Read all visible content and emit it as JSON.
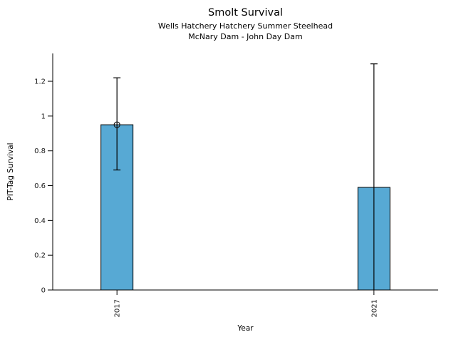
{
  "chart_data": {
    "type": "bar",
    "title": "Smolt Survival",
    "subtitle_line1": "Wells Hatchery Hatchery Summer Steelhead",
    "subtitle_line2": "McNary Dam - John Day Dam",
    "xlabel": "Year",
    "ylabel": "PIT-Tag Survival",
    "categories": [
      "2017",
      "2021"
    ],
    "values": [
      0.95,
      0.59
    ],
    "error_low": [
      0.69,
      0
    ],
    "error_high": [
      1.22,
      1.3
    ],
    "point_markers": [
      true,
      false
    ],
    "yticks": [
      0,
      0.2,
      0.4,
      0.6,
      0.8,
      1,
      1.2
    ],
    "ytick_labels": [
      "0",
      "0.2",
      "0.4",
      "0.6",
      "0.8",
      "1",
      "1.2"
    ],
    "ylim": [
      0,
      1.36
    ],
    "xtick_rotation": 90,
    "grid": false,
    "legend_position": "none",
    "bar_color": "#57a9d4",
    "bar_edge_color": "#000000",
    "error_color": "#000000",
    "axis_color": "#000000"
  }
}
